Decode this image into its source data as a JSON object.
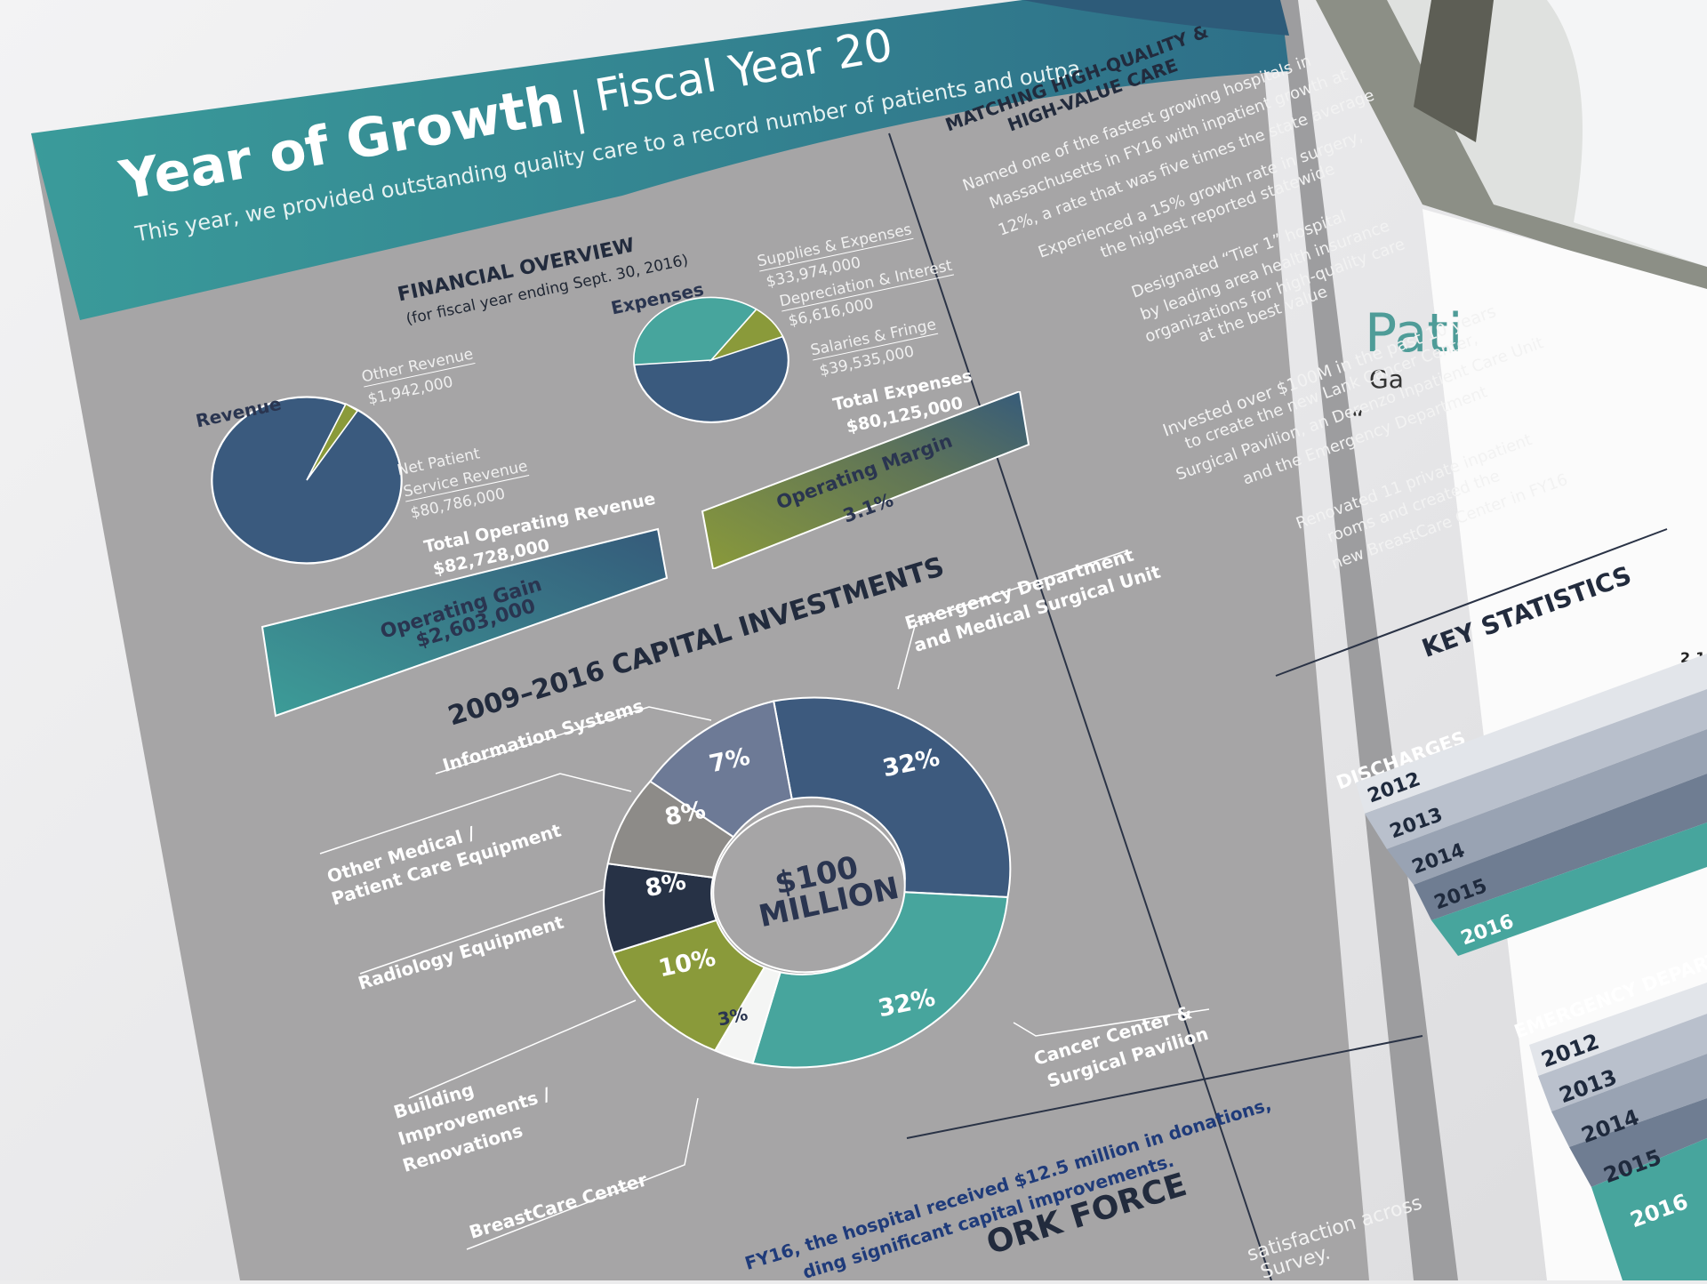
{
  "header": {
    "title": "Year of Growth",
    "separator": "|",
    "fiscal_year": "Fiscal Year 20",
    "subtitle": "This year, we provided outstanding quality care to a record number of patients and outpa"
  },
  "financial": {
    "title": "FINANCIAL OVERVIEW",
    "subtitle": "(for fiscal year ending Sept. 30, 2016)",
    "revenue_label": "Revenue",
    "other_revenue_label": "Other Revenue",
    "other_revenue_value": "$1,942,000",
    "net_patient_label_1": "Net Patient",
    "net_patient_label_2": "Service Revenue",
    "net_patient_value": "$80,786,000",
    "total_op_rev_label": "Total Operating Revenue",
    "total_op_rev_value": "$82,728,000",
    "expenses_label": "Expenses",
    "supplies_label": "Supplies & Expenses",
    "supplies_value": "$33,974,000",
    "depreciation_label": "Depreciation & Interest",
    "depreciation_value": "$6,616,000",
    "salaries_label": "Salaries & Fringe",
    "salaries_value": "$39,535,000",
    "total_exp_label": "Total Expenses",
    "total_exp_value": "$80,125,000",
    "margin_label": "Operating Margin",
    "margin_value": "3.1%",
    "gain_label": "Operating Gain",
    "gain_value": "$2,603,000"
  },
  "capital": {
    "title": "2009–2016 CAPITAL INVESTMENTS",
    "center_1": "$100",
    "center_2": "MILLION",
    "categories": [
      {
        "label_1": "Emergency Department",
        "label_2": "and Medical Surgical Unit",
        "pct": "32%"
      },
      {
        "label_1": "Cancer Center &",
        "label_2": "Surgical Pavilion",
        "pct": "32%"
      },
      {
        "label_1": "BreastCare Center",
        "label_2": "",
        "pct": "3%"
      },
      {
        "label_1": "Building",
        "label_2": "Improvements /",
        "label_3": "Renovations",
        "pct": "10%"
      },
      {
        "label_1": "Radiology Equipment",
        "label_2": "",
        "pct": "8%"
      },
      {
        "label_1": "Other Medical /",
        "label_2": "Patient Care Equipment",
        "pct": "8%"
      },
      {
        "label_1": "Information Systems",
        "label_2": "",
        "pct": "7%"
      }
    ],
    "bottom_note_1": "FY16, the hospital received $12.5 million in donations,",
    "bottom_note_2": "ding significant capital improvements.",
    "workforce": "ORK FORCE"
  },
  "matching": {
    "title_1": "MATCHING HIGH-QUALITY &",
    "title_2": "HIGH-VALUE CARE",
    "p1_1": "Named one of the fastest growing hospitals in",
    "p1_2": "Massachusetts in FY16 with inpatient growth at",
    "p1_3": "12%, a rate that was five times the state average",
    "p2_1": "Experienced a 15% growth rate in surgery,",
    "p2_2": "the highest reported statewide",
    "p3_1": "Designated “Tier 1” hospital",
    "p3_2": "by leading area health insurance",
    "p3_3": "organizations for high-quality care",
    "p3_4": "at the best value",
    "p4_1": "Invested over $100M in the past 10 years",
    "p4_2": "to create the new Lank Cancer Center,",
    "p4_3": "Surgical Pavilion, an Derenzo Inpatient Care Unit",
    "p4_4": "and the Emergency Department",
    "p5_1": "Renovated 11 private inpatient",
    "p5_2": "rooms and created the",
    "p5_3": "new BreastCare Center in FY16",
    "satisfaction_1": "satisfaction across",
    "satisfaction_2": "Survey."
  },
  "key_stats": {
    "title": "KEY STATISTICS",
    "discharges": "DISCHARGES",
    "emergency": "EMERGENCY DEPART",
    "years": [
      "2012",
      "2013",
      "2014",
      "2015",
      "2016"
    ],
    "top_values": [
      "2,1",
      "2"
    ]
  },
  "right_page": {
    "heading": "Pati",
    "sub": "Ga",
    "quote": "“"
  }
}
